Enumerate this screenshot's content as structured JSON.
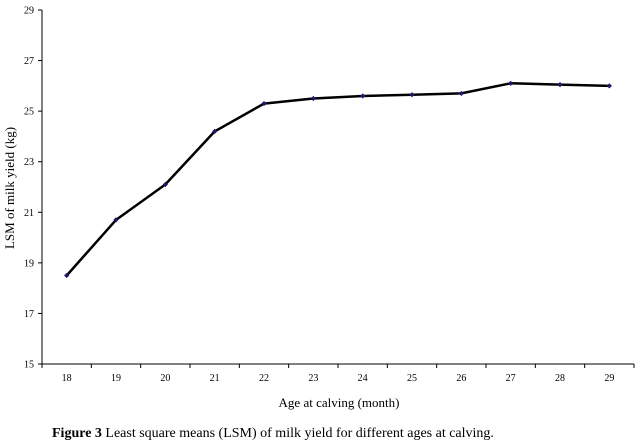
{
  "chart_data": {
    "type": "line",
    "xlabel": "Age at calving (month)",
    "ylabel": "LSM of milk yield (kg)",
    "x": [
      18,
      19,
      20,
      21,
      22,
      23,
      24,
      25,
      26,
      27,
      28,
      29
    ],
    "series": [
      {
        "values": [
          18.5,
          20.7,
          22.1,
          24.2,
          25.3,
          25.5,
          25.6,
          25.65,
          25.7,
          26.1,
          26.05,
          26.0
        ]
      }
    ],
    "ylim": [
      15,
      29
    ],
    "yticks": [
      15,
      17,
      19,
      21,
      23,
      25,
      27,
      29
    ],
    "grid": false,
    "legend": "none",
    "line_color": "#000000",
    "marker_color": "#1a1a66"
  },
  "caption": {
    "label": "Figure 3",
    "text": " Least square means (LSM) of milk yield for different ages at calving."
  }
}
